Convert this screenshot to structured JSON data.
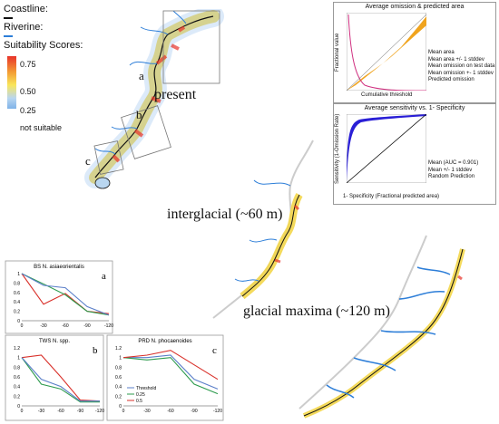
{
  "legend": {
    "coastline_label": "Coastline:",
    "riverine_label": "Riverine:",
    "suitability_label": "Suitability Scores:",
    "ticks": [
      "0.75",
      "0.50",
      "0.25",
      "not suitable"
    ],
    "colors": {
      "high": "#e8332a",
      "mid": "#f9e65a",
      "low": "#7fb2e8",
      "coast": "#111111",
      "river": "#2d7ed8"
    }
  },
  "maps": {
    "present": "present",
    "interglacial": "interglacial (~60 m)",
    "glacial": "glacial maxima (~120 m)",
    "region_labels": [
      "a",
      "b",
      "c"
    ]
  },
  "omission_chart": {
    "title": "Average omission & predicted area",
    "ylabel": "Fractional value",
    "xlabel": "Cumulative threshold",
    "legend": [
      "Mean area",
      "Mean area +/- 1 stddev",
      "Mean omission on test data",
      "Mean omission +- 1 stddev",
      "Predicted omission"
    ]
  },
  "roc_chart": {
    "title": "Average sensitivity vs. 1- Specificity",
    "ylabel": "Sensitivity (1-Omission Rate)",
    "xlabel": "1- Specificity (Fractional predicted area)",
    "legend": [
      "Mean (AUC = 0.901)",
      "Mean +/- 1 stddev",
      "Random Prediction"
    ]
  },
  "chart_data": [
    {
      "type": "line",
      "title": "BS N. asiaeorientalis",
      "panel_label": "a",
      "categories": [
        "0",
        "-30",
        "-60",
        "-90",
        "-120"
      ],
      "yticks": [
        "0",
        "0.2",
        "0.4",
        "0.6",
        "0.8",
        "1"
      ],
      "ylim": [
        0,
        1
      ],
      "series": [
        {
          "color": "#d9312b",
          "values": [
            1.0,
            0.35,
            0.58,
            0.2,
            0.15
          ]
        },
        {
          "color": "#2e9b4e",
          "values": [
            1.0,
            0.78,
            0.55,
            0.2,
            0.12
          ]
        },
        {
          "color": "#5b7fc9",
          "values": [
            1.0,
            0.75,
            0.7,
            0.3,
            0.12
          ]
        }
      ]
    },
    {
      "type": "line",
      "title": "TWS N. spp.",
      "panel_label": "b",
      "categories": [
        "0",
        "-30",
        "-60",
        "-90",
        "-120"
      ],
      "yticks": [
        "0",
        "0.2",
        "0.4",
        "0.6",
        "0.8",
        "1",
        "1.2"
      ],
      "ylim": [
        0,
        1.2
      ],
      "series": [
        {
          "color": "#d9312b",
          "values": [
            1.0,
            1.05,
            0.6,
            0.12,
            0.1
          ]
        },
        {
          "color": "#2e9b4e",
          "values": [
            1.0,
            0.45,
            0.35,
            0.08,
            0.08
          ]
        },
        {
          "color": "#5b7fc9",
          "values": [
            1.0,
            0.55,
            0.4,
            0.1,
            0.1
          ]
        }
      ]
    },
    {
      "type": "line",
      "title": "PRD N. phocaenoides",
      "panel_label": "c",
      "categories": [
        "0",
        "-30",
        "-60",
        "-90",
        "-120"
      ],
      "yticks": [
        "0",
        "0.2",
        "0.4",
        "0.6",
        "0.8",
        "1",
        "1.2"
      ],
      "ylim": [
        0,
        1.2
      ],
      "series": [
        {
          "name": "Threshold",
          "color": "#5b7fc9",
          "values": [
            1.0,
            1.0,
            1.05,
            0.55,
            0.35
          ]
        },
        {
          "name": "0.25",
          "color": "#2e9b4e",
          "values": [
            1.0,
            0.95,
            1.0,
            0.45,
            0.25
          ]
        },
        {
          "name": "0.5",
          "color": "#d9312b",
          "values": [
            1.0,
            1.05,
            1.15,
            0.85,
            0.55
          ]
        }
      ]
    }
  ]
}
